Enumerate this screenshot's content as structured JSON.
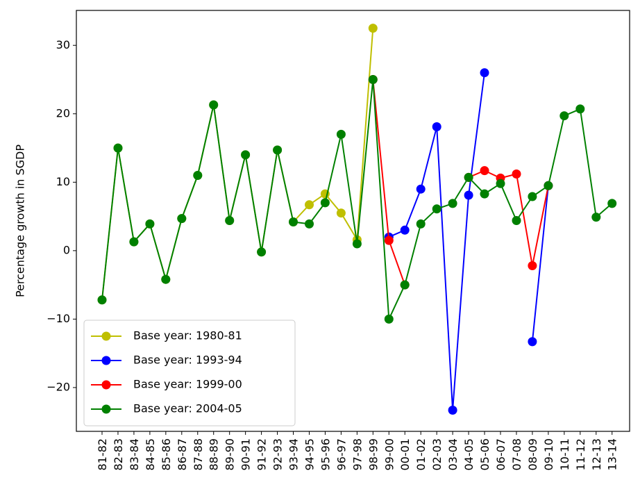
{
  "chart_data": {
    "type": "line",
    "title": "",
    "xlabel": "",
    "ylabel": "Percentage growth in SGDP",
    "ylim": [
      -26.4,
      35.1
    ],
    "yticks": [
      -20,
      -10,
      0,
      10,
      20,
      30
    ],
    "grid": false,
    "legend_position": "lower-left",
    "categories": [
      "81-82",
      "82-83",
      "83-84",
      "84-85",
      "85-86",
      "86-87",
      "87-88",
      "88-89",
      "89-90",
      "90-91",
      "91-92",
      "92-93",
      "93-94",
      "94-95",
      "95-96",
      "96-97",
      "97-98",
      "98-99",
      "99-00",
      "00-01",
      "01-02",
      "02-03",
      "03-04",
      "04-05",
      "05-06",
      "06-07",
      "07-08",
      "08-09",
      "09-10",
      "10-11",
      "11-12",
      "12-13",
      "13-14"
    ],
    "series": [
      {
        "name": "Base year: 1980-81",
        "color": "#bfbf00",
        "values": [
          -7.2,
          15.0,
          1.3,
          3.9,
          -4.2,
          4.7,
          11.0,
          21.3,
          4.4,
          14.0,
          -0.2,
          14.7,
          4.2,
          6.7,
          8.3,
          5.5,
          1.6,
          32.5,
          null,
          null,
          null,
          null,
          null,
          null,
          null,
          null,
          null,
          null,
          null,
          null,
          null,
          null,
          null
        ]
      },
      {
        "name": "Base year: 1993-94",
        "color": "#0000ff",
        "values": [
          null,
          null,
          null,
          null,
          null,
          null,
          null,
          null,
          null,
          null,
          null,
          null,
          null,
          null,
          null,
          null,
          null,
          null,
          2.0,
          3.0,
          9.0,
          18.1,
          -23.3,
          8.1,
          26.0,
          null,
          null,
          -13.3,
          9.5,
          null,
          null,
          null,
          null
        ]
      },
      {
        "name": "Base year: 1999-00",
        "color": "#ff0000",
        "values": [
          null,
          null,
          null,
          null,
          null,
          null,
          null,
          null,
          null,
          null,
          null,
          null,
          null,
          null,
          null,
          null,
          null,
          25.0,
          1.5,
          -5.0,
          null,
          null,
          null,
          10.7,
          11.7,
          10.6,
          11.2,
          -2.2,
          9.5,
          null,
          null,
          null,
          null
        ]
      },
      {
        "name": "Base year: 2004-05",
        "color": "#008000",
        "values": [
          -7.2,
          15.0,
          1.3,
          3.9,
          -4.2,
          4.7,
          11.0,
          21.3,
          4.4,
          14.0,
          -0.2,
          14.7,
          4.2,
          3.9,
          7.0,
          17.0,
          1.0,
          25.0,
          -10.0,
          -5.0,
          3.9,
          6.1,
          6.9,
          10.7,
          8.3,
          9.8,
          4.4,
          7.9,
          9.5,
          19.7,
          20.7,
          4.9,
          6.9
        ]
      }
    ]
  }
}
